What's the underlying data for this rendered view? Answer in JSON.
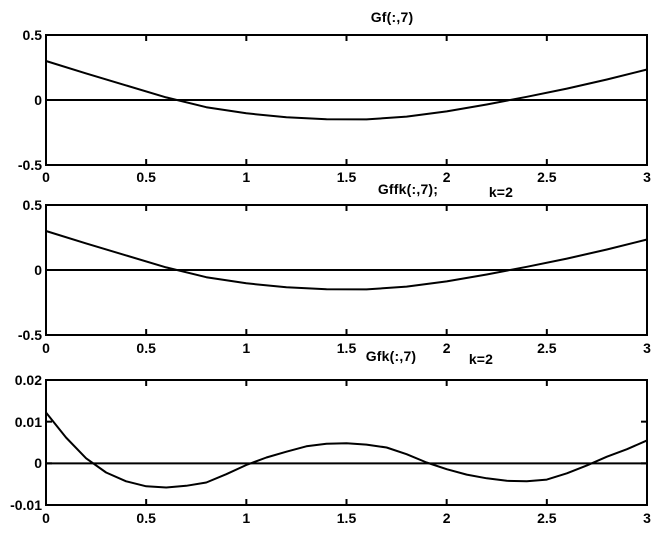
{
  "figure": {
    "background": "#ffffff",
    "line_color": "#000000"
  },
  "chart_data": [
    {
      "type": "line",
      "title": "Gf(:,7)",
      "k_label": "",
      "xlim": [
        0,
        3
      ],
      "ylim": [
        -0.5,
        0.5
      ],
      "xticks": [
        0,
        0.5,
        1,
        1.5,
        2,
        2.5,
        3
      ],
      "xtick_labels": [
        "0",
        "0.5",
        "1",
        "1.5",
        "2",
        "2.5",
        "3"
      ],
      "yticks": [
        0.5,
        0,
        -0.5
      ],
      "ytick_labels": [
        "0.5",
        "0",
        "-0.5"
      ],
      "grid": false,
      "zero_line": true,
      "series": [
        {
          "x": [
            0.0,
            0.2,
            0.4,
            0.6,
            0.8,
            1.0,
            1.2,
            1.4,
            1.6,
            1.8,
            2.0,
            2.2,
            2.4,
            2.6,
            2.8,
            3.0
          ],
          "y": [
            0.3,
            0.205,
            0.112,
            0.02,
            -0.055,
            -0.102,
            -0.133,
            -0.148,
            -0.149,
            -0.128,
            -0.088,
            -0.035,
            0.025,
            0.088,
            0.158,
            0.235
          ]
        }
      ]
    },
    {
      "type": "line",
      "title": "Gffk(:,7);",
      "k_label": "k=2",
      "xlim": [
        0,
        3
      ],
      "ylim": [
        -0.5,
        0.5
      ],
      "xticks": [
        0,
        0.5,
        1,
        1.5,
        2,
        2.5,
        3
      ],
      "xtick_labels": [
        "0",
        "0.5",
        "1",
        "1.5",
        "2",
        "2.5",
        "3"
      ],
      "yticks": [
        0.5,
        0,
        -0.5
      ],
      "ytick_labels": [
        "0.5",
        "0",
        "-0.5"
      ],
      "grid": false,
      "zero_line": true,
      "series": [
        {
          "x": [
            0.0,
            0.2,
            0.4,
            0.6,
            0.8,
            1.0,
            1.2,
            1.4,
            1.6,
            1.8,
            2.0,
            2.2,
            2.4,
            2.6,
            2.8,
            3.0
          ],
          "y": [
            0.3,
            0.205,
            0.112,
            0.02,
            -0.055,
            -0.102,
            -0.133,
            -0.148,
            -0.149,
            -0.128,
            -0.088,
            -0.035,
            0.025,
            0.088,
            0.158,
            0.235
          ]
        }
      ]
    },
    {
      "type": "line",
      "title": "Gfk(:,7)",
      "k_label": "k=2",
      "xlim": [
        0,
        3
      ],
      "ylim": [
        -0.01,
        0.02
      ],
      "xticks": [
        0,
        0.5,
        1,
        1.5,
        2,
        2.5,
        3
      ],
      "xtick_labels": [
        "0",
        "0.5",
        "1",
        "1.5",
        "2",
        "2.5",
        "3"
      ],
      "yticks": [
        0.02,
        0.01,
        0,
        -0.01
      ],
      "ytick_labels": [
        "0.02",
        "0.01",
        "0",
        "-0.01"
      ],
      "grid": false,
      "zero_line": true,
      "series": [
        {
          "x": [
            0.0,
            0.1,
            0.2,
            0.3,
            0.4,
            0.5,
            0.6,
            0.7,
            0.8,
            0.9,
            1.0,
            1.1,
            1.2,
            1.3,
            1.4,
            1.5,
            1.6,
            1.7,
            1.8,
            1.9,
            2.0,
            2.1,
            2.2,
            2.3,
            2.4,
            2.5,
            2.6,
            2.7,
            2.8,
            2.9,
            3.0
          ],
          "y": [
            0.0122,
            0.0062,
            0.0012,
            -0.0022,
            -0.0043,
            -0.0055,
            -0.0058,
            -0.0054,
            -0.0046,
            -0.0026,
            -0.0004,
            0.0014,
            0.0028,
            0.0041,
            0.0047,
            0.0048,
            0.0045,
            0.0038,
            0.0022,
            0.0002,
            -0.0014,
            -0.0027,
            -0.0036,
            -0.0042,
            -0.0043,
            -0.0039,
            -0.0024,
            -0.0005,
            0.0016,
            0.0034,
            0.0055
          ]
        }
      ]
    }
  ]
}
